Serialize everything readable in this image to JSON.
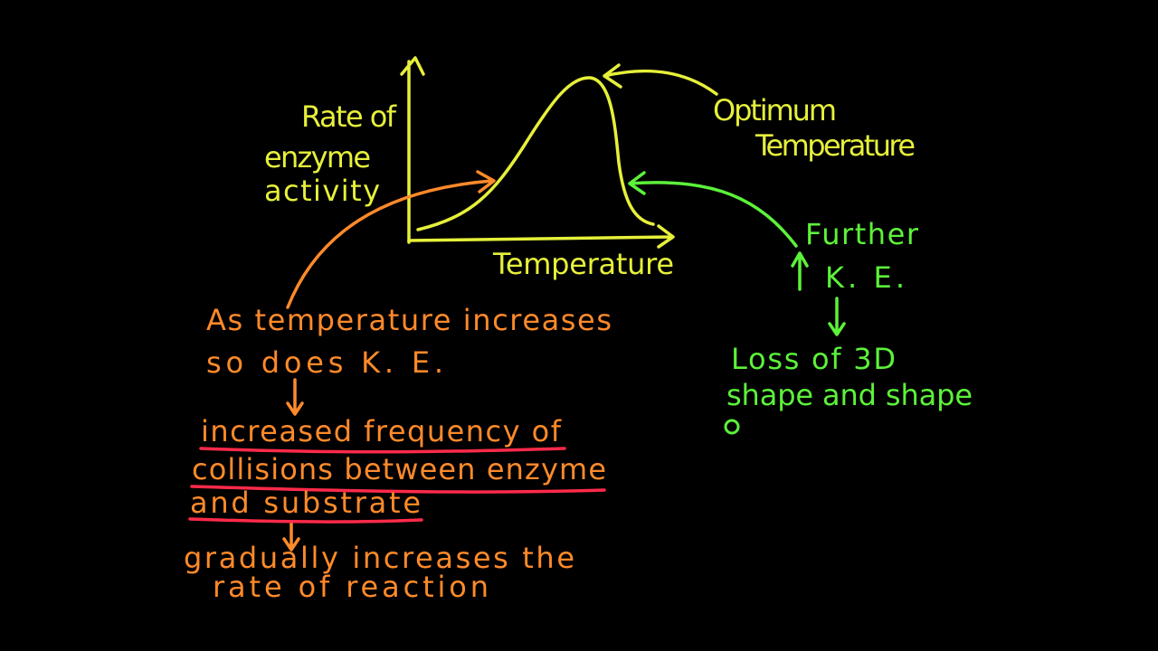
{
  "graph": {
    "y_axis_label": [
      "Rate of",
      "enzyme",
      "activity"
    ],
    "x_axis_label": "Temperature"
  },
  "optimum_note": [
    "Optimum",
    "Temperature"
  ],
  "high_temp_note": {
    "cause": [
      "Further",
      "K. E."
    ],
    "effect": [
      "Loss of 3D",
      "shape and shape"
    ]
  },
  "rising_note": {
    "lines": [
      "As temperature increases",
      "so does K. E."
    ],
    "consequence": [
      "increased frequency of",
      "collisions between enzyme",
      "and substrate"
    ],
    "result": [
      "gradually increases the",
      "rate of reaction"
    ]
  }
}
